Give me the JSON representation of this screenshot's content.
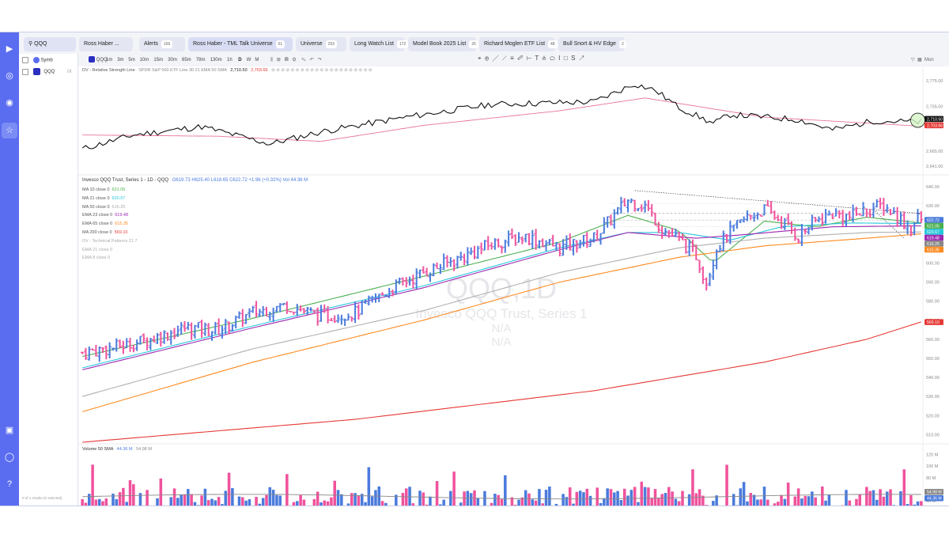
{
  "topbar": {
    "search_value": "QQQ",
    "watchlist_user": "Ross Haber ...",
    "tabs": [
      {
        "label": "Alerts",
        "count": "166"
      },
      {
        "label": "Ross Haber - TML Talk Universe",
        "count": "61"
      },
      {
        "label": "Universe",
        "count": "293"
      },
      {
        "label": "Long Watch List",
        "count": "172"
      },
      {
        "label": "Model Book 2025 List",
        "count": "26"
      },
      {
        "label": "Richard Moglen ETF List",
        "count": "48"
      },
      {
        "label": "Bull Snort & HV Edge",
        "count": "2"
      }
    ]
  },
  "toolbar": {
    "symbol_column": "Symb",
    "symbol": "QQQ",
    "intervals": [
      "1m",
      "3m",
      "5m",
      "10m",
      "15m",
      "30m",
      "65m",
      "78m",
      "130m",
      "1h",
      "D",
      "W",
      "M"
    ],
    "active_interval": "D",
    "day_label": "Mon"
  },
  "watchlist": {
    "rows": [
      {
        "symbol": "QQQ",
        "flag": "IX"
      }
    ],
    "footer": "0 of 1 results (0 selected)"
  },
  "rs_pane": {
    "title": "DV - Relative Strength Line",
    "subtitle": "SPDR S&P 500 ETF Line 30 21 EMA 50 SMA",
    "value1": "2,710.50",
    "value2": "2,703.66",
    "axis_ticks": [
      "2,775.00",
      "2,735.00",
      "2,665.00",
      "2,641.00"
    ]
  },
  "price_pane": {
    "title": "Invesco QQQ Trust, Series 1 - 1D - QQQ",
    "ohlc": "O619.73  H625.40  L618.65  C622.72  +1.96 (+0.32%)  Vol 44.36 M",
    "watermark_symbol": "QQQ,1D",
    "watermark_name": "Invesco QQQ Trust, Series 1",
    "watermark_na1": "N/A",
    "watermark_na2": "N/A",
    "indicators": [
      {
        "label": "MA 10 close 0",
        "value": "621.05",
        "color": "#4caf50"
      },
      {
        "label": "MA 21 close 0",
        "value": "620.67",
        "color": "#26c6da"
      },
      {
        "label": "MA 50 close 0",
        "value": "616.25",
        "color": "#aaaaaa"
      },
      {
        "label": "EMA 23 close 0",
        "value": "619.48",
        "color": "#9c27b0"
      },
      {
        "label": "EMA 65 close 0",
        "value": "615.35",
        "color": "#ff8a1f"
      },
      {
        "label": "MA 200 close 0",
        "value": "569.10",
        "color": "#e53935"
      },
      {
        "label": "DV - Technical Patterns 21 7",
        "value": "",
        "color": "#b0b0b0"
      },
      {
        "label": "EMA 21 close 0",
        "value": "",
        "color": "#b0b0b0"
      },
      {
        "label": "EMA 8 close 0",
        "value": "",
        "color": "#b0b0b0"
      }
    ],
    "axis_ticks": [
      "640.00",
      "630.00",
      "620.00",
      "610.00",
      "600.00",
      "590.00",
      "580.00",
      "570.00",
      "560.00",
      "550.00",
      "540.00",
      "530.00",
      "520.00",
      "510.00"
    ],
    "price_badges": [
      {
        "value": "622.72",
        "color": "#4a7bdc"
      },
      {
        "value": "621.05",
        "color": "#4caf50"
      },
      {
        "value": "620.67",
        "color": "#26c6da"
      },
      {
        "value": "619.48",
        "color": "#9c27b0"
      },
      {
        "value": "616.25",
        "color": "#888888"
      },
      {
        "value": "615.35",
        "color": "#ff8a1f"
      },
      {
        "value": "569.10",
        "color": "#e53935"
      }
    ]
  },
  "volume_pane": {
    "title": "Volume 50 SMA",
    "value1": "44.36 M",
    "value2": "54.98 M",
    "axis_ticks": [
      "120 M",
      "100 M",
      "80 M",
      "40 M",
      "20 M"
    ],
    "badge1": "54.98 M",
    "badge2": "44.36 M"
  },
  "x_axis": [
    "16",
    "23",
    "Aug",
    "8",
    "15",
    "22",
    "Sep",
    "9",
    "16",
    "23",
    "Oct",
    "8",
    "15",
    "22",
    "Nov",
    "10",
    "17",
    "Dec",
    "8",
    "15",
    "22",
    "2026",
    "9",
    "16",
    "26"
  ],
  "colors": {
    "up": "#4a7bdc",
    "down": "#f0529c",
    "accent": "#5a6df0"
  },
  "chart_data": {
    "type": "bar",
    "title": "Invesco QQQ Trust, Series 1 - 1D - QQQ",
    "last_close": 622.72,
    "ylim": [
      506,
      645
    ],
    "volume_ylim_m": [
      0,
      125
    ],
    "trend": [
      [
        0,
        553
      ],
      [
        10,
        556
      ],
      [
        20,
        560
      ],
      [
        30,
        566
      ],
      [
        40,
        565
      ],
      [
        50,
        574
      ],
      [
        60,
        578
      ],
      [
        70,
        572
      ],
      [
        80,
        574
      ],
      [
        90,
        586
      ],
      [
        100,
        595
      ],
      [
        110,
        602
      ],
      [
        120,
        610
      ],
      [
        130,
        614
      ],
      [
        140,
        608
      ],
      [
        150,
        613
      ],
      [
        160,
        633
      ],
      [
        165,
        630
      ],
      [
        170,
        618
      ],
      [
        175,
        612
      ],
      [
        180,
        604
      ],
      [
        183,
        590
      ],
      [
        186,
        608
      ],
      [
        190,
        616
      ],
      [
        195,
        624
      ],
      [
        200,
        628
      ],
      [
        205,
        622
      ],
      [
        210,
        614
      ],
      [
        215,
        622
      ],
      [
        220,
        626
      ],
      [
        225,
        624
      ],
      [
        230,
        628
      ],
      [
        235,
        630
      ],
      [
        240,
        623
      ],
      [
        243,
        618
      ],
      [
        246,
        626
      ]
    ],
    "ma_series": [
      {
        "name": "MA 10",
        "color": "#4caf50",
        "points": [
          [
            0,
            551
          ],
          [
            50,
            571
          ],
          [
            100,
            593
          ],
          [
            140,
            611
          ],
          [
            160,
            625
          ],
          [
            175,
            617
          ],
          [
            185,
            600
          ],
          [
            200,
            622
          ],
          [
            215,
            619
          ],
          [
            230,
            624
          ],
          [
            246,
            621
          ]
        ]
      },
      {
        "name": "MA 21",
        "color": "#26c6da",
        "points": [
          [
            0,
            545
          ],
          [
            50,
            567
          ],
          [
            100,
            588
          ],
          [
            140,
            608
          ],
          [
            160,
            616
          ],
          [
            175,
            616
          ],
          [
            190,
            612
          ],
          [
            205,
            619
          ],
          [
            225,
            621
          ],
          [
            246,
            620.7
          ]
        ]
      },
      {
        "name": "EMA 23",
        "color": "#9c27b0",
        "points": [
          [
            0,
            544
          ],
          [
            50,
            566
          ],
          [
            100,
            587
          ],
          [
            140,
            607
          ],
          [
            160,
            616
          ],
          [
            180,
            613
          ],
          [
            195,
            615
          ],
          [
            220,
            619
          ],
          [
            246,
            619.5
          ]
        ]
      },
      {
        "name": "MA 50",
        "color": "#b0b0b0",
        "points": [
          [
            0,
            530
          ],
          [
            50,
            555
          ],
          [
            100,
            575
          ],
          [
            140,
            595
          ],
          [
            175,
            608
          ],
          [
            200,
            613
          ],
          [
            230,
            616
          ],
          [
            246,
            616.3
          ]
        ]
      },
      {
        "name": "EMA 65",
        "color": "#ff8a1f",
        "points": [
          [
            0,
            522
          ],
          [
            50,
            548
          ],
          [
            100,
            570
          ],
          [
            140,
            590
          ],
          [
            175,
            603
          ],
          [
            200,
            609
          ],
          [
            230,
            613
          ],
          [
            246,
            615.3
          ]
        ]
      },
      {
        "name": "MA 200",
        "color": "#e53935",
        "points": [
          [
            0,
            506
          ],
          [
            80,
            518
          ],
          [
            150,
            533
          ],
          [
            200,
            548
          ],
          [
            230,
            560
          ],
          [
            246,
            569.1
          ]
        ]
      }
    ],
    "rs_line": [
      [
        0,
        2668
      ],
      [
        15,
        2690
      ],
      [
        35,
        2703
      ],
      [
        55,
        2676
      ],
      [
        70,
        2695
      ],
      [
        95,
        2718
      ],
      [
        120,
        2738
      ],
      [
        150,
        2742
      ],
      [
        162,
        2770
      ],
      [
        168,
        2760
      ],
      [
        175,
        2733
      ],
      [
        185,
        2708
      ],
      [
        190,
        2722
      ],
      [
        200,
        2718
      ],
      [
        210,
        2714
      ],
      [
        220,
        2698
      ],
      [
        232,
        2712
      ],
      [
        246,
        2710.5
      ]
    ],
    "rs_ema": [
      [
        0,
        2690
      ],
      [
        40,
        2688
      ],
      [
        70,
        2680
      ],
      [
        100,
        2705
      ],
      [
        140,
        2728
      ],
      [
        165,
        2748
      ],
      [
        200,
        2718
      ],
      [
        246,
        2703.66
      ]
    ]
  }
}
